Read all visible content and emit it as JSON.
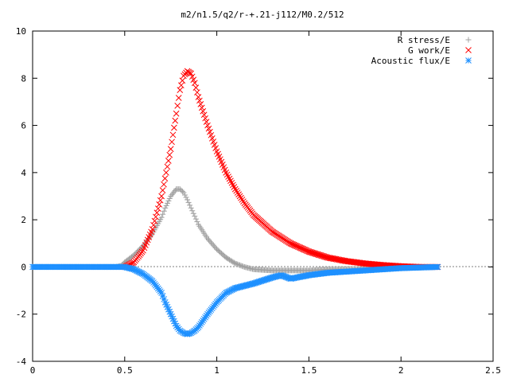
{
  "chart_data": {
    "type": "scatter",
    "title": "m2/n1.5/q2/r-+.21-j112/M0.2/512",
    "xlabel": "",
    "ylabel": "",
    "xlim": [
      0,
      2.5
    ],
    "ylim": [
      -4,
      10
    ],
    "xticks": [
      "0",
      "0.5",
      "1",
      "1.5",
      "2",
      "2.5"
    ],
    "yticks": [
      "-4",
      "-2",
      "0",
      "2",
      "4",
      "6",
      "8",
      "10"
    ],
    "grid": false,
    "legend_position": "top-right",
    "series": [
      {
        "name": "R stress/E",
        "marker": "plus",
        "color": "#a0a0a0",
        "x": [
          0.0,
          0.2,
          0.4,
          0.45,
          0.48,
          0.5,
          0.55,
          0.6,
          0.65,
          0.7,
          0.72,
          0.75,
          0.78,
          0.8,
          0.82,
          0.84,
          0.86,
          0.88,
          0.9,
          0.95,
          1.0,
          1.05,
          1.1,
          1.15,
          1.2,
          1.3,
          1.4,
          1.5,
          1.6,
          1.8,
          2.0,
          2.2
        ],
        "y": [
          0.0,
          0.0,
          0.0,
          0.0,
          0.05,
          0.2,
          0.5,
          0.9,
          1.4,
          2.1,
          2.5,
          3.0,
          3.3,
          3.3,
          3.15,
          2.85,
          2.5,
          2.15,
          1.8,
          1.2,
          0.75,
          0.4,
          0.15,
          0.0,
          -0.1,
          -0.15,
          -0.15,
          -0.15,
          -0.1,
          -0.08,
          -0.05,
          0.0
        ]
      },
      {
        "name": "G work/E",
        "marker": "cross",
        "color": "#ff0000",
        "x": [
          0.5,
          0.55,
          0.6,
          0.65,
          0.7,
          0.75,
          0.78,
          0.8,
          0.82,
          0.84,
          0.86,
          0.88,
          0.9,
          0.95,
          1.0,
          1.05,
          1.1,
          1.15,
          1.2,
          1.3,
          1.4,
          1.5,
          1.6,
          1.7,
          1.8,
          1.9,
          2.0,
          2.1,
          2.2
        ],
        "y": [
          0.0,
          0.2,
          0.7,
          1.6,
          3.0,
          5.0,
          6.5,
          7.5,
          8.1,
          8.3,
          8.2,
          7.8,
          7.2,
          6.0,
          4.9,
          4.0,
          3.3,
          2.7,
          2.2,
          1.5,
          1.0,
          0.65,
          0.4,
          0.25,
          0.15,
          0.08,
          0.03,
          0.0,
          0.0
        ]
      },
      {
        "name": "Acoustic flux/E",
        "marker": "star",
        "color": "#1e90ff",
        "x": [
          0.0,
          0.2,
          0.4,
          0.5,
          0.55,
          0.6,
          0.65,
          0.7,
          0.72,
          0.75,
          0.78,
          0.8,
          0.82,
          0.84,
          0.86,
          0.88,
          0.9,
          0.95,
          1.0,
          1.05,
          1.1,
          1.2,
          1.3,
          1.35,
          1.4,
          1.5,
          1.6,
          1.8,
          2.0,
          2.2
        ],
        "y": [
          0.0,
          0.0,
          0.0,
          0.0,
          -0.1,
          -0.3,
          -0.6,
          -1.1,
          -1.5,
          -2.0,
          -2.5,
          -2.7,
          -2.8,
          -2.85,
          -2.8,
          -2.7,
          -2.55,
          -2.0,
          -1.5,
          -1.1,
          -0.9,
          -0.7,
          -0.45,
          -0.35,
          -0.5,
          -0.35,
          -0.25,
          -0.15,
          -0.05,
          0.0
        ]
      }
    ]
  }
}
